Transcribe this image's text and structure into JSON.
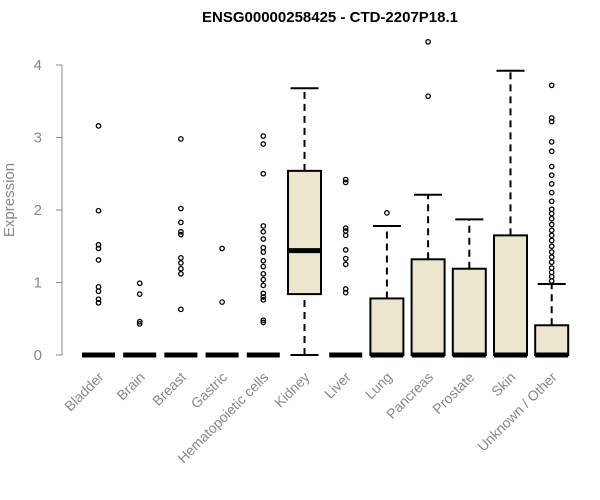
{
  "chart_data": {
    "type": "box",
    "title": "ENSG00000258425 - CTD-2207P18.1",
    "ylabel": "Expression",
    "xlabel": "",
    "ylim": [
      0,
      4.3
    ],
    "yticks": [
      0,
      1,
      2,
      3,
      4
    ],
    "colors": {
      "box_fill": "#ede6cf",
      "stroke": "#000000",
      "axis_text": "#888888"
    },
    "categories": [
      "Bladder",
      "Brain",
      "Breast",
      "Gastric",
      "Hematopoietic cells",
      "Kidney",
      "Liver",
      "Lung",
      "Pancreas",
      "Prostate",
      "Skin",
      "Unknown / Other"
    ],
    "boxes": [
      {
        "category": "Bladder",
        "whisker_low": 0,
        "q1": 0,
        "median": 0,
        "q3": 0,
        "whisker_high": 0,
        "outliers": [
          3.16,
          1.99,
          1.52,
          1.47,
          1.31,
          0.94,
          0.88,
          0.77,
          0.72
        ]
      },
      {
        "category": "Brain",
        "whisker_low": 0,
        "q1": 0,
        "median": 0,
        "q3": 0,
        "whisker_high": 0,
        "outliers": [
          0.99,
          0.84,
          0.46,
          0.43
        ]
      },
      {
        "category": "Breast",
        "whisker_low": 0,
        "q1": 0,
        "median": 0,
        "q3": 0,
        "whisker_high": 0,
        "outliers": [
          2.98,
          2.02,
          1.83,
          1.7,
          1.66,
          1.34,
          1.27,
          1.19,
          1.12,
          0.63
        ]
      },
      {
        "category": "Gastric",
        "whisker_low": 0,
        "q1": 0,
        "median": 0,
        "q3": 0,
        "whisker_high": 0,
        "outliers": [
          1.47,
          0.73
        ]
      },
      {
        "category": "Hematopoietic cells",
        "whisker_low": 0,
        "q1": 0,
        "median": 0,
        "q3": 0,
        "whisker_high": 0,
        "outliers": [
          3.02,
          2.91,
          2.5,
          1.78,
          1.7,
          1.6,
          1.48,
          1.42,
          1.3,
          1.22,
          1.12,
          1.04,
          0.96,
          0.85,
          0.8,
          0.76,
          0.48,
          0.45
        ]
      },
      {
        "category": "Kidney",
        "whisker_low": 0,
        "q1": 0.84,
        "median": 1.44,
        "q3": 2.54,
        "whisker_high": 3.68,
        "outliers": []
      },
      {
        "category": "Liver",
        "whisker_low": 0,
        "q1": 0,
        "median": 0,
        "q3": 0,
        "whisker_high": 0,
        "outliers": [
          2.42,
          2.38,
          1.75,
          1.71,
          1.65,
          1.45,
          1.33,
          1.25,
          0.91,
          0.86
        ]
      },
      {
        "category": "Lung",
        "whisker_low": 0,
        "q1": 0,
        "median": 0,
        "q3": 0.78,
        "whisker_high": 1.78,
        "outliers": [
          1.96
        ]
      },
      {
        "category": "Pancreas",
        "whisker_low": 0,
        "q1": 0,
        "median": 0,
        "q3": 1.32,
        "whisker_high": 2.21,
        "outliers": [
          4.32,
          3.57
        ]
      },
      {
        "category": "Prostate",
        "whisker_low": 0,
        "q1": 0,
        "median": 0,
        "q3": 1.19,
        "whisker_high": 1.87,
        "outliers": []
      },
      {
        "category": "Skin",
        "whisker_low": 0,
        "q1": 0,
        "median": 0,
        "q3": 1.65,
        "whisker_high": 3.92,
        "outliers": []
      },
      {
        "category": "Unknown / Other",
        "whisker_low": 0,
        "q1": 0,
        "median": 0,
        "q3": 0.41,
        "whisker_high": 0.98,
        "outliers": [
          3.72,
          3.27,
          3.22,
          2.94,
          2.81,
          2.6,
          2.48,
          2.36,
          2.24,
          2.12,
          2.01,
          1.95,
          1.88,
          1.8,
          1.72,
          1.65,
          1.58,
          1.5,
          1.42,
          1.35,
          1.28,
          1.2,
          1.14,
          1.08,
          1.02
        ]
      }
    ]
  }
}
